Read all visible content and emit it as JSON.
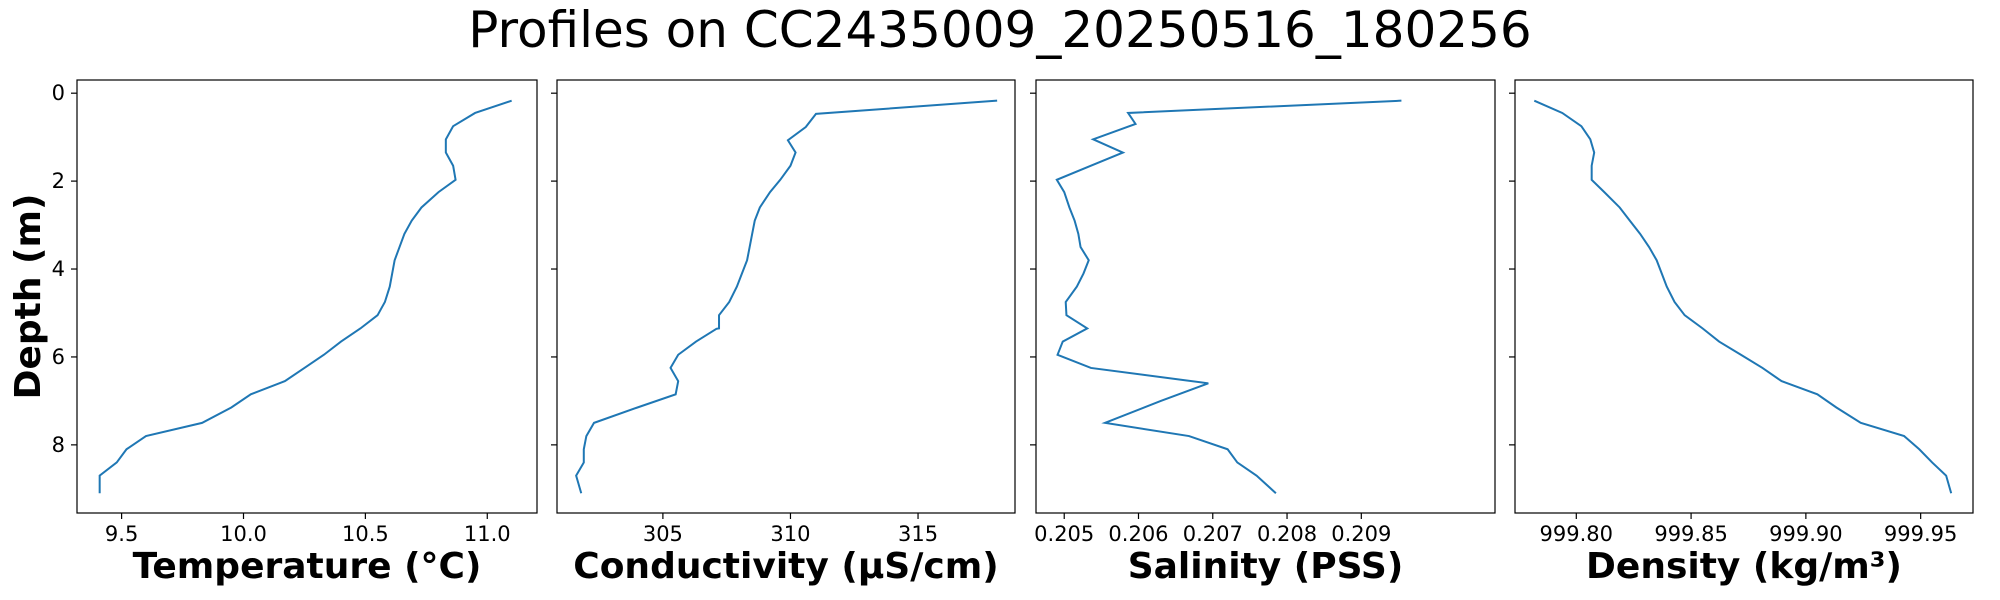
{
  "title": "Profiles on CC2435009_20250516_180256",
  "chart_data": [
    {
      "type": "line",
      "x_label": "Temperature (°C)",
      "y_label": "Depth (m)",
      "show_ytick_labels": true,
      "color": "#1f77b4",
      "xlim": [
        9.317,
        11.204
      ],
      "xticks": [
        9.5,
        {
          "value": 10,
          "label": "10.0"
        },
        10.5,
        {
          "value": 11,
          "label": "11.0"
        }
      ],
      "ylim": [
        9.55,
        -0.3
      ],
      "yticks": [
        0,
        2,
        4,
        6,
        8
      ],
      "x": [
        11.1,
        10.95,
        10.86,
        10.83,
        10.83,
        10.86,
        10.87,
        10.8,
        10.73,
        10.69,
        10.66,
        10.64,
        10.62,
        10.61,
        10.6,
        10.58,
        10.55,
        10.48,
        10.4,
        10.33,
        10.25,
        10.17,
        10.03,
        9.95,
        9.83,
        9.6,
        9.52,
        9.48,
        9.41,
        9.41
      ],
      "y": [
        0.17,
        0.45,
        0.75,
        1.05,
        1.35,
        1.65,
        1.97,
        2.25,
        2.6,
        2.9,
        3.2,
        3.5,
        3.8,
        4.1,
        4.4,
        4.75,
        5.05,
        5.35,
        5.65,
        5.95,
        6.25,
        6.55,
        6.85,
        7.15,
        7.5,
        7.8,
        8.1,
        8.4,
        8.7,
        9.1
      ]
    },
    {
      "type": "line",
      "x_label": "Conductivity (µS/cm)",
      "show_ytick_labels": false,
      "color": "#1f77b4",
      "xlim": [
        300.85,
        318.8
      ],
      "xticks": [
        305,
        310,
        315
      ],
      "ylim": [
        9.55,
        -0.3
      ],
      "yticks": [
        0,
        2,
        4,
        6,
        8
      ],
      "x": [
        318.1,
        311.0,
        310.6,
        309.9,
        310.2,
        310.0,
        309.6,
        309.2,
        308.8,
        308.6,
        308.5,
        308.4,
        308.3,
        308.1,
        307.9,
        307.6,
        307.2,
        307.2,
        307.1,
        306.3,
        305.6,
        305.3,
        305.6,
        305.5,
        304.0,
        302.3,
        302.0,
        301.9,
        301.9,
        301.6,
        301.8
      ],
      "y": [
        0.17,
        0.47,
        0.77,
        1.07,
        1.35,
        1.65,
        1.97,
        2.25,
        2.6,
        2.9,
        3.2,
        3.5,
        3.8,
        4.1,
        4.4,
        4.75,
        5.05,
        5.35,
        5.36,
        5.65,
        5.95,
        6.25,
        6.55,
        6.85,
        7.15,
        7.5,
        7.8,
        8.1,
        8.4,
        8.7,
        9.1
      ]
    },
    {
      "type": "line",
      "x_label": "Salinity (PSS)",
      "show_ytick_labels": false,
      "color": "#1f77b4",
      "xlim": [
        0.20462,
        0.2108
      ],
      "xticks": [
        0.205,
        0.206,
        0.207,
        0.208,
        0.209
      ],
      "ylim": [
        9.55,
        -0.3
      ],
      "yticks": [
        0,
        2,
        4,
        6,
        8
      ],
      "x": [
        0.20954,
        0.20586,
        0.20596,
        0.20539,
        0.20579,
        0.20536,
        0.2049,
        0.205,
        0.20507,
        0.20514,
        0.20519,
        0.20522,
        0.20533,
        0.20526,
        0.20517,
        0.20502,
        0.20503,
        0.20531,
        0.20498,
        0.20491,
        0.20536,
        0.20694,
        0.2063,
        0.20555,
        0.20668,
        0.2072,
        0.20733,
        0.20759,
        0.20785
      ],
      "y": [
        0.17,
        0.45,
        0.7,
        1.05,
        1.35,
        1.65,
        1.97,
        2.25,
        2.6,
        2.9,
        3.2,
        3.5,
        3.8,
        4.1,
        4.4,
        4.75,
        5.05,
        5.35,
        5.65,
        5.95,
        6.25,
        6.6,
        7.0,
        7.5,
        7.8,
        8.1,
        8.4,
        8.7,
        9.1
      ]
    },
    {
      "type": "line",
      "x_label": "Density (kg/m³)",
      "show_ytick_labels": false,
      "color": "#1f77b4",
      "xlim": [
        999.7733,
        999.9728
      ],
      "xticks": [
        {
          "value": 999.8,
          "label": "999.80"
        },
        999.85,
        {
          "value": 999.9,
          "label": "999.90"
        },
        999.95
      ],
      "ylim": [
        9.55,
        -0.3
      ],
      "yticks": [
        0,
        2,
        4,
        6,
        8
      ],
      "x": [
        999.7817,
        999.7939,
        999.8022,
        999.8061,
        999.8078,
        999.8067,
        999.8067,
        999.8122,
        999.8189,
        999.8233,
        999.8278,
        999.8317,
        999.835,
        999.8372,
        999.8394,
        999.8428,
        999.8472,
        999.855,
        999.8622,
        999.8717,
        999.8811,
        999.8894,
        999.905,
        999.9133,
        999.9239,
        999.9428,
        999.9494,
        999.955,
        999.9611,
        999.9633
      ],
      "y": [
        0.17,
        0.45,
        0.75,
        1.05,
        1.35,
        1.65,
        1.97,
        2.25,
        2.6,
        2.9,
        3.2,
        3.5,
        3.8,
        4.1,
        4.4,
        4.75,
        5.05,
        5.35,
        5.65,
        5.95,
        6.25,
        6.55,
        6.85,
        7.15,
        7.5,
        7.8,
        8.1,
        8.4,
        8.7,
        9.1
      ]
    }
  ]
}
